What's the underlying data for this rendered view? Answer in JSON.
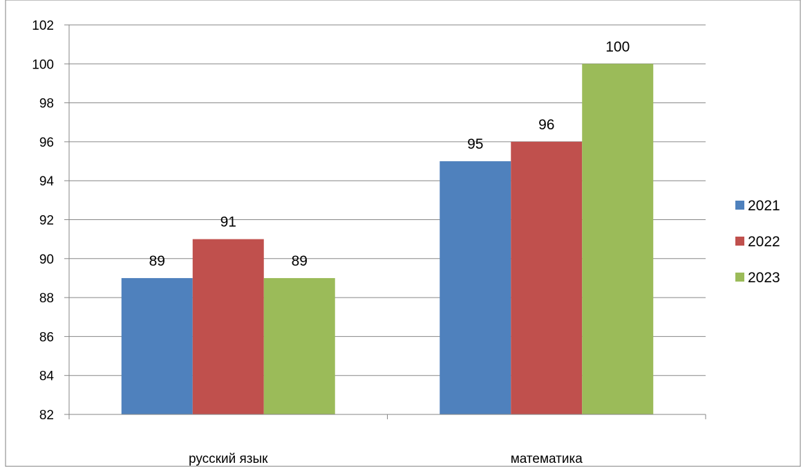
{
  "chart_data": {
    "type": "bar",
    "categories": [
      "русский язык",
      "математика"
    ],
    "series": [
      {
        "name": "2021",
        "values": [
          89,
          95
        ],
        "color": "#4F81BD"
      },
      {
        "name": "2022",
        "values": [
          91,
          96
        ],
        "color": "#C0504D"
      },
      {
        "name": "2023",
        "values": [
          89,
          100
        ],
        "color": "#9BBB59"
      }
    ],
    "ylim": [
      82,
      102
    ],
    "ytick_step": 2,
    "grid": true,
    "data_labels": true,
    "legend_position": "right"
  }
}
